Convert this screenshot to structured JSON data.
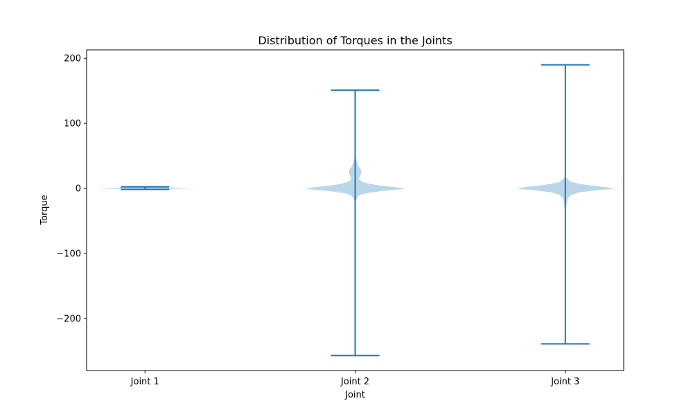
{
  "chart_data": {
    "type": "violin",
    "title": "Distribution of Torques in the Joints",
    "xlabel": "Joint",
    "ylabel": "Torque",
    "categories": [
      "Joint 1",
      "Joint 2",
      "Joint 3"
    ],
    "ylim": [
      -280,
      213
    ],
    "yticks": [
      200,
      100,
      0,
      -100,
      -200
    ],
    "ytick_labels": [
      "200",
      "100",
      "0",
      "−100",
      "−200"
    ],
    "grid": false,
    "colors": {
      "body": "#1f77b4",
      "lines": "#1f77b4"
    },
    "series": [
      {
        "category": "Joint 1",
        "min": -1.5,
        "max": 2.5,
        "profile": [
          [
            -1.5,
            0.02
          ],
          [
            0,
            1.0
          ],
          [
            2.5,
            0.02
          ]
        ]
      },
      {
        "category": "Joint 2",
        "min": -257,
        "max": 151,
        "profile": [
          [
            -22,
            0.0
          ],
          [
            -17,
            0.03
          ],
          [
            -12,
            0.06
          ],
          [
            -8,
            0.18
          ],
          [
            -4,
            0.55
          ],
          [
            -1,
            0.98
          ],
          [
            0,
            1.0
          ],
          [
            2,
            0.82
          ],
          [
            4,
            0.55
          ],
          [
            7,
            0.3
          ],
          [
            10,
            0.15
          ],
          [
            14,
            0.08
          ],
          [
            18,
            0.1
          ],
          [
            22,
            0.12
          ],
          [
            26,
            0.13
          ],
          [
            30,
            0.11
          ],
          [
            34,
            0.07
          ],
          [
            38,
            0.05
          ],
          [
            44,
            0.03
          ],
          [
            48,
            0.0
          ]
        ]
      },
      {
        "category": "Joint 3",
        "min": -239,
        "max": 190,
        "profile": [
          [
            -38,
            0.0
          ],
          [
            -30,
            0.015
          ],
          [
            -22,
            0.03
          ],
          [
            -15,
            0.05
          ],
          [
            -10,
            0.12
          ],
          [
            -6,
            0.3
          ],
          [
            -3,
            0.62
          ],
          [
            -1,
            0.92
          ],
          [
            0,
            1.0
          ],
          [
            2,
            0.82
          ],
          [
            4,
            0.58
          ],
          [
            7,
            0.3
          ],
          [
            10,
            0.12
          ],
          [
            14,
            0.05
          ],
          [
            18,
            0.0
          ]
        ]
      }
    ]
  }
}
